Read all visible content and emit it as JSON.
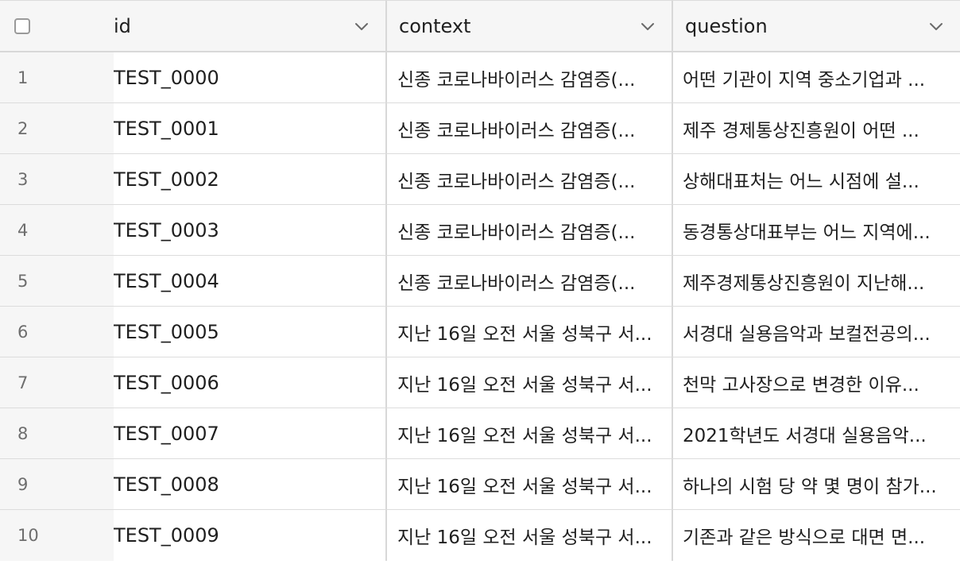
{
  "columns": {
    "id": "id",
    "context": "context",
    "question": "question"
  },
  "rows": [
    {
      "num": "1",
      "id": "TEST_0000",
      "context": "신종 코로나바이러스 감염증(...",
      "question": "어떤 기관이 지역 중소기업과 ..."
    },
    {
      "num": "2",
      "id": "TEST_0001",
      "context": "신종 코로나바이러스 감염증(...",
      "question": "제주 경제통상진흥원이 어떤 ..."
    },
    {
      "num": "3",
      "id": "TEST_0002",
      "context": "신종 코로나바이러스 감염증(...",
      "question": "상해대표처는 어느 시점에 설..."
    },
    {
      "num": "4",
      "id": "TEST_0003",
      "context": "신종 코로나바이러스 감염증(...",
      "question": "동경통상대표부는 어느 지역에..."
    },
    {
      "num": "5",
      "id": "TEST_0004",
      "context": "신종 코로나바이러스 감염증(...",
      "question": "제주경제통상진흥원이 지난해..."
    },
    {
      "num": "6",
      "id": "TEST_0005",
      "context": "지난 16일 오전 서울 성북구 서...",
      "question": "서경대 실용음악과 보컬전공의..."
    },
    {
      "num": "7",
      "id": "TEST_0006",
      "context": "지난 16일 오전 서울 성북구 서...",
      "question": "천막 고사장으로 변경한 이유..."
    },
    {
      "num": "8",
      "id": "TEST_0007",
      "context": "지난 16일 오전 서울 성북구 서...",
      "question": "2021학년도 서경대 실용음악..."
    },
    {
      "num": "9",
      "id": "TEST_0008",
      "context": "지난 16일 오전 서울 성북구 서...",
      "question": "하나의 시험 당 약 몇 명이 참가..."
    },
    {
      "num": "10",
      "id": "TEST_0009",
      "context": "지난 16일 오전 서울 성북구 서...",
      "question": "기존과 같은 방식으로 대면 면..."
    }
  ],
  "icons": {
    "select_all": "checkbox-icon",
    "sort_menu": "chevron-down-icon"
  }
}
